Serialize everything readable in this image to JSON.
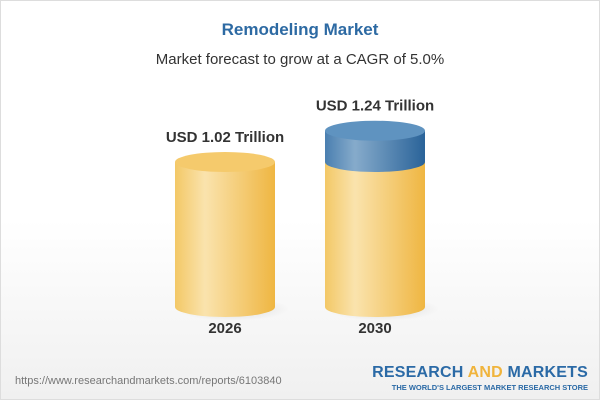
{
  "header": {
    "title": "Remodeling Market",
    "subtitle": "Market forecast to grow at a CAGR of 5.0%"
  },
  "chart_data": {
    "type": "bar",
    "style": "3d-cylinder",
    "categories": [
      "2026",
      "2030"
    ],
    "values": [
      1.02,
      1.24
    ],
    "unit": "USD Trillion",
    "data_labels": [
      "USD 1.02 Trillion",
      "USD 1.24 Trillion"
    ],
    "cagr": "5.0%",
    "colors": {
      "base": "#f3c45e",
      "growth": "#4f86b5"
    }
  },
  "footer": {
    "url": "https://www.researchandmarkets.com/reports/6103840",
    "logo_part1": "RESEARCH ",
    "logo_part2": "AND",
    "logo_part3": " MARKETS",
    "tagline": "THE WORLD'S LARGEST MARKET RESEARCH STORE"
  }
}
